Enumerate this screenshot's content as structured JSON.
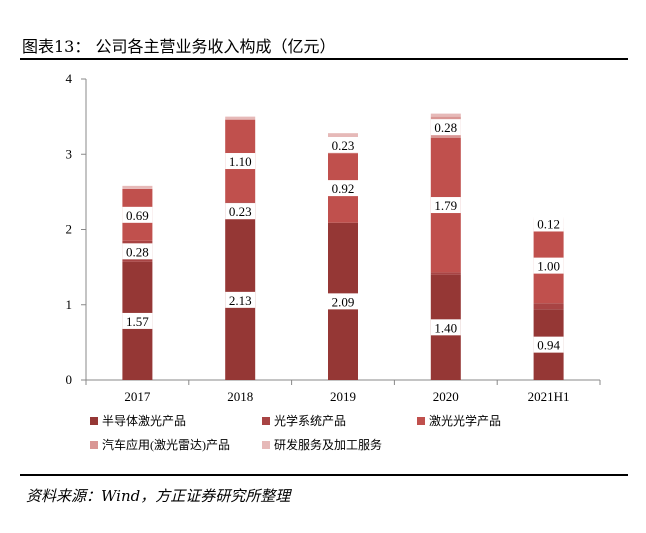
{
  "figure": {
    "title": "图表13：  公司各主营业务收入构成（亿元）",
    "source": "资料来源：Wind，方正证券研究所整理"
  },
  "chart_data": {
    "type": "bar",
    "stacked": true,
    "title": "公司各主营业务收入构成（亿元）",
    "xlabel": "",
    "ylabel": "",
    "ylim": [
      0,
      4
    ],
    "yticks": [
      0,
      1,
      2,
      3,
      4
    ],
    "categories": [
      "2017",
      "2018",
      "2019",
      "2020",
      "2021H1"
    ],
    "series": [
      {
        "name": "半导体激光产品",
        "color": "#953735",
        "values": [
          1.57,
          2.13,
          2.09,
          1.4,
          0.94
        ]
      },
      {
        "name": "光学系统产品",
        "color": "#A84444",
        "values": [
          0.28,
          0.23,
          0.0,
          0.03,
          0.08
        ]
      },
      {
        "name": "激光光学产品",
        "color": "#C0504D",
        "values": [
          0.69,
          1.1,
          0.92,
          1.79,
          1.0
        ]
      },
      {
        "name": "汽车应用(激光雷达)产品",
        "color": "#D99694",
        "values": [
          0.0,
          0.0,
          0.23,
          0.28,
          0.12
        ]
      },
      {
        "name": "研发服务及加工服务",
        "color": "#E6B9B8",
        "values": [
          0.04,
          0.04,
          0.04,
          0.04,
          0.02
        ]
      }
    ],
    "data_labels": [
      {
        "category": "2017",
        "series": "半导体激光产品",
        "text": "1.57"
      },
      {
        "category": "2017",
        "series": "光学系统产品",
        "text": "0.28"
      },
      {
        "category": "2017",
        "series": "激光光学产品",
        "text": "0.69"
      },
      {
        "category": "2018",
        "series": "半导体激光产品",
        "text": "2.13"
      },
      {
        "category": "2018",
        "series": "光学系统产品",
        "text": "0.23"
      },
      {
        "category": "2018",
        "series": "激光光学产品",
        "text": "1.10"
      },
      {
        "category": "2019",
        "series": "半导体激光产品",
        "text": "2.09"
      },
      {
        "category": "2019",
        "series": "激光光学产品",
        "text": "0.92"
      },
      {
        "category": "2019",
        "series": "汽车应用(激光雷达)产品",
        "text": "0.23"
      },
      {
        "category": "2020",
        "series": "半导体激光产品",
        "text": "1.40"
      },
      {
        "category": "2020",
        "series": "激光光学产品",
        "text": "1.79"
      },
      {
        "category": "2020",
        "series": "汽车应用(激光雷达)产品",
        "text": "0.28"
      },
      {
        "category": "2021H1",
        "series": "半导体激光产品",
        "text": "0.94"
      },
      {
        "category": "2021H1",
        "series": "激光光学产品",
        "text": "1.00"
      },
      {
        "category": "2021H1",
        "series": "汽车应用(激光雷达)产品",
        "text": "0.12"
      }
    ],
    "legend_position": "bottom"
  }
}
